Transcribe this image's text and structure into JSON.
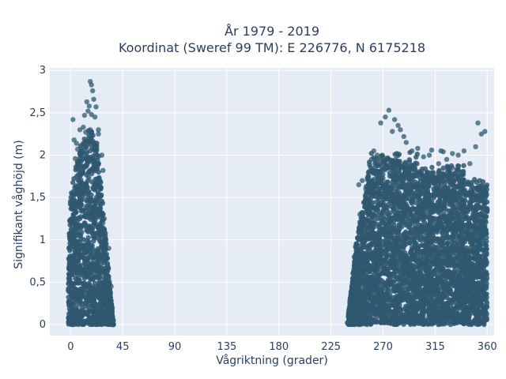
{
  "chart_data": {
    "type": "scatter",
    "title_line1": "År 1979 - 2019",
    "title_line2": "Koordinat (Sweref 99 TM): E 226776, N 6175218",
    "xlabel": "Vågriktning (grader)",
    "ylabel": "Signifikant våghöjd (m)",
    "xlim": [
      -18,
      366
    ],
    "ylim": [
      -0.13,
      3.03
    ],
    "xticks": [
      0,
      45,
      90,
      135,
      180,
      225,
      270,
      315,
      360
    ],
    "xtick_labels": [
      "0",
      "45",
      "90",
      "135",
      "180",
      "225",
      "270",
      "315",
      "360"
    ],
    "yticks": [
      0,
      0.5,
      1,
      1.5,
      2,
      2.5,
      3
    ],
    "ytick_labels": [
      "0",
      "0,5",
      "1",
      "1,5",
      "2",
      "2,5",
      "3"
    ],
    "grid": true,
    "colors": {
      "marker": "#2f5870",
      "plot_bg": "#e5ecf6",
      "grid": "#ffffff",
      "text": "#2a3f5f"
    },
    "series": [
      {
        "values_summary": "dense cloud",
        "clusters": [
          {
            "x_range": [
              -2,
              37
            ],
            "y_range": [
              0,
              2.35
            ]
          },
          {
            "x_range": [
              240,
              360
            ],
            "y_range": [
              0,
              2.2
            ]
          }
        ],
        "points": [
          [
            17,
            2.87
          ],
          [
            18,
            2.83
          ],
          [
            19,
            2.76
          ],
          [
            20,
            2.66
          ],
          [
            14,
            2.63
          ],
          [
            16,
            2.58
          ],
          [
            15,
            2.52
          ],
          [
            22,
            2.57
          ],
          [
            12,
            2.47
          ],
          [
            18,
            2.48
          ],
          [
            2,
            2.42
          ],
          [
            21,
            2.45
          ],
          [
            8,
            2.3
          ],
          [
            11,
            2.33
          ],
          [
            13,
            2.27
          ],
          [
            17,
            2.3
          ],
          [
            24,
            2.3
          ],
          [
            3,
            2.18
          ],
          [
            5,
            2.14
          ],
          [
            6,
            2.07
          ],
          [
            9,
            2.08
          ],
          [
            24,
            2.25
          ],
          [
            21,
            2.1
          ],
          [
            4,
            1.96
          ],
          [
            27,
            2.0
          ],
          [
            6,
            1.88
          ],
          [
            28,
            1.82
          ],
          [
            25,
            1.7
          ],
          [
            33,
            0.9
          ],
          [
            35,
            0.45
          ],
          [
            36,
            0.2
          ],
          [
            37,
            0.05
          ],
          [
            28,
            1.2
          ],
          [
            30,
            1.05
          ],
          [
            31,
            0.8
          ],
          [
            275,
            2.53
          ],
          [
            272,
            2.45
          ],
          [
            268,
            2.38
          ],
          [
            280,
            2.42
          ],
          [
            283,
            2.35
          ],
          [
            285,
            2.3
          ],
          [
            288,
            2.22
          ],
          [
            278,
            2.28
          ],
          [
            290,
            2.15
          ],
          [
            295,
            2.05
          ],
          [
            300,
            2.08
          ],
          [
            310,
            2.0
          ],
          [
            312,
            2.06
          ],
          [
            320,
            2.05
          ],
          [
            322,
            2.04
          ],
          [
            335,
            2.0
          ],
          [
            340,
            2.05
          ],
          [
            352,
            2.38
          ],
          [
            355,
            2.25
          ],
          [
            358,
            2.28
          ],
          [
            305,
            1.98
          ],
          [
            318,
            1.9
          ],
          [
            325,
            1.95
          ],
          [
            330,
            1.85
          ],
          [
            345,
            1.9
          ],
          [
            350,
            2.1
          ],
          [
            330,
            2.02
          ],
          [
            262,
            2.05
          ],
          [
            265,
            2.0
          ],
          [
            252,
            1.7
          ],
          [
            249,
            1.65
          ],
          [
            260,
            1.95
          ],
          [
            245,
            0.8
          ],
          [
            243,
            0.4
          ],
          [
            241,
            0.15
          ],
          [
            239,
            0.02
          ],
          [
            244,
            0.6
          ],
          [
            250,
            1.3
          ],
          [
            255,
            1.6
          ]
        ]
      }
    ]
  }
}
